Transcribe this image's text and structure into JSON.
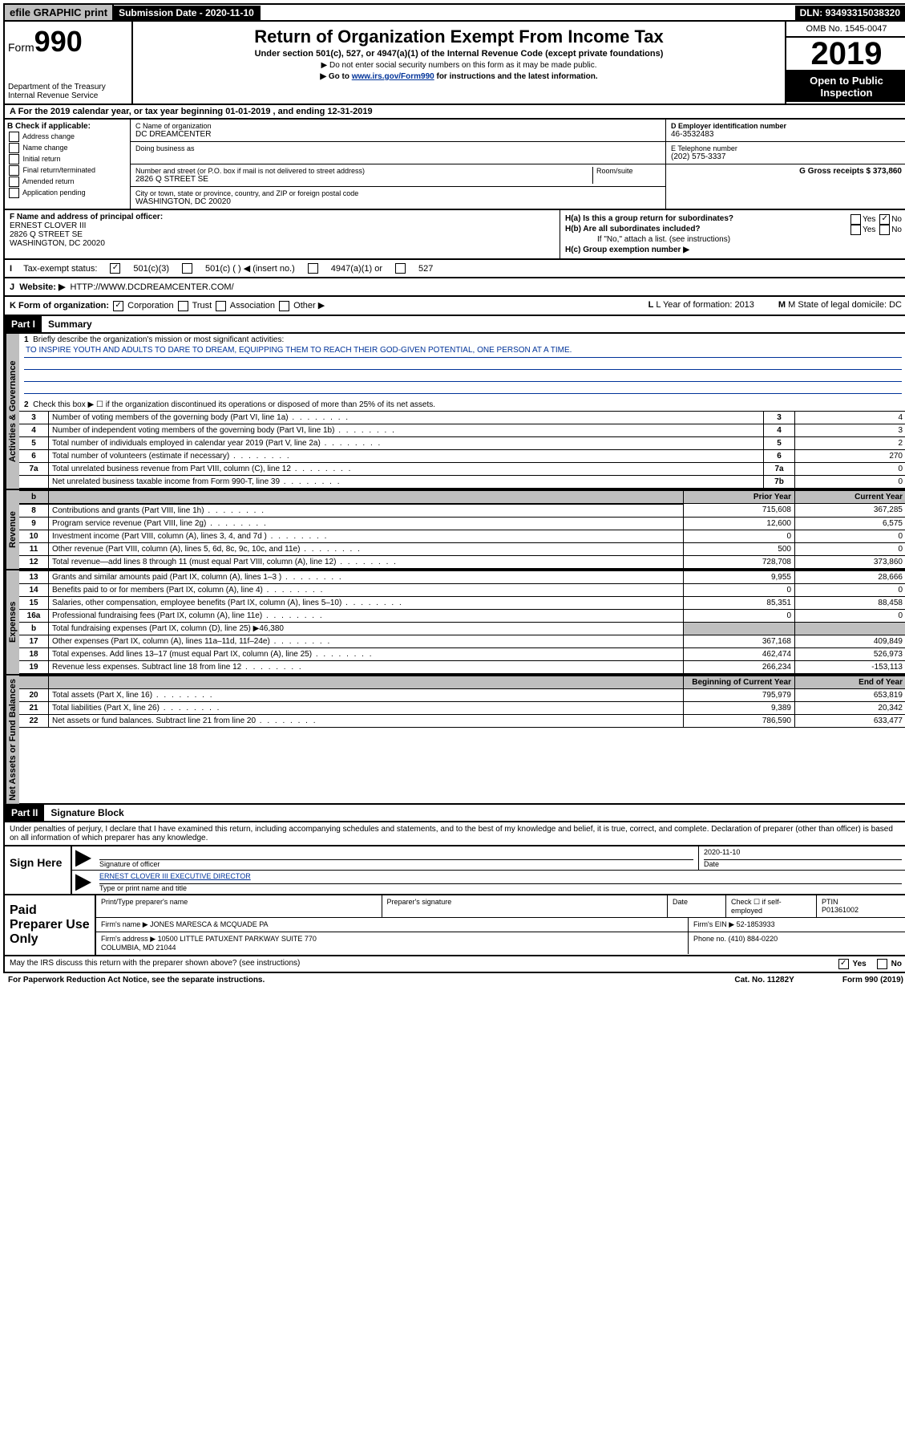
{
  "topbar": {
    "efile": "efile GRAPHIC print",
    "submission": "Submission Date - 2020-11-10",
    "dln": "DLN: 93493315038320"
  },
  "header": {
    "form_prefix": "Form",
    "form_num": "990",
    "dept1": "Department of the Treasury",
    "dept2": "Internal Revenue Service",
    "title": "Return of Organization Exempt From Income Tax",
    "subtitle": "Under section 501(c), 527, or 4947(a)(1) of the Internal Revenue Code (except private foundations)",
    "line1": "▶ Do not enter social security numbers on this form as it may be made public.",
    "line2_pre": "▶ Go to ",
    "line2_link": "www.irs.gov/Form990",
    "line2_post": " for instructions and the latest information.",
    "omb": "OMB No. 1545-0047",
    "year": "2019",
    "open": "Open to Public Inspection"
  },
  "row_a": "A For the 2019 calendar year, or tax year beginning 01-01-2019    , and ending 12-31-2019",
  "section_b": {
    "b_label": "B Check if applicable:",
    "opts": [
      "Address change",
      "Name change",
      "Initial return",
      "Final return/terminated",
      "Amended return",
      "Application pending"
    ]
  },
  "section_c": {
    "name_label": "C Name of organization",
    "name": "DC DREAMCENTER",
    "dba_label": "Doing business as",
    "street_label": "Number and street (or P.O. box if mail is not delivered to street address)",
    "room_label": "Room/suite",
    "street": "2826 Q STREET SE",
    "city_label": "City or town, state or province, country, and ZIP or foreign postal code",
    "city": "WASHINGTON, DC  20020"
  },
  "section_d": {
    "d_label": "D Employer identification number",
    "ein": "46-3532483",
    "e_label": "E Telephone number",
    "phone": "(202) 575-3337",
    "g_label": "G Gross receipts $ 373,860"
  },
  "section_f": {
    "f_label": "F Name and address of principal officer:",
    "name": "ERNEST CLOVER III",
    "street": "2826 Q STREET SE",
    "city": "WASHINGTON, DC  20020"
  },
  "section_h": {
    "ha": "H(a)  Is this a group return for subordinates?",
    "hb": "H(b)  Are all subordinates included?",
    "hb_note": "If \"No,\" attach a list. (see instructions)",
    "hc": "H(c)  Group exemption number ▶"
  },
  "row_i": {
    "label": "Tax-exempt status:",
    "opt1": "501(c)(3)",
    "opt2": "501(c) (   ) ◀ (insert no.)",
    "opt3": "4947(a)(1) or",
    "opt4": "527"
  },
  "row_j": {
    "label": "Website: ▶",
    "url": "HTTP://WWW.DCDREAMCENTER.COM/"
  },
  "row_k": {
    "label": "K Form of organization:",
    "corp": "Corporation",
    "trust": "Trust",
    "assoc": "Association",
    "other": "Other ▶",
    "l": "L Year of formation: 2013",
    "m": "M State of legal domicile: DC"
  },
  "part1": {
    "header": "Part I",
    "title": "Summary",
    "side1": "Activities & Governance",
    "side2": "Revenue",
    "side3": "Expenses",
    "side4": "Net Assets or Fund Balances",
    "q1": "Briefly describe the organization's mission or most significant activities:",
    "mission": "TO INSPIRE YOUTH AND ADULTS TO DARE TO DREAM, EQUIPPING THEM TO REACH THEIR GOD-GIVEN POTENTIAL, ONE PERSON AT A TIME.",
    "q2": "Check this box ▶ ☐  if the organization discontinued its operations or disposed of more than 25% of its net assets.",
    "rows_gov": [
      {
        "n": "3",
        "d": "Number of voting members of the governing body (Part VI, line 1a)",
        "i": "3",
        "v": "4"
      },
      {
        "n": "4",
        "d": "Number of independent voting members of the governing body (Part VI, line 1b)",
        "i": "4",
        "v": "3"
      },
      {
        "n": "5",
        "d": "Total number of individuals employed in calendar year 2019 (Part V, line 2a)",
        "i": "5",
        "v": "2"
      },
      {
        "n": "6",
        "d": "Total number of volunteers (estimate if necessary)",
        "i": "6",
        "v": "270"
      },
      {
        "n": "7a",
        "d": "Total unrelated business revenue from Part VIII, column (C), line 12",
        "i": "7a",
        "v": "0"
      },
      {
        "n": "",
        "d": "Net unrelated business taxable income from Form 990-T, line 39",
        "i": "7b",
        "v": "0"
      }
    ],
    "col_prior": "Prior Year",
    "col_current": "Current Year",
    "rows_rev": [
      {
        "n": "8",
        "d": "Contributions and grants (Part VIII, line 1h)",
        "p": "715,608",
        "c": "367,285"
      },
      {
        "n": "9",
        "d": "Program service revenue (Part VIII, line 2g)",
        "p": "12,600",
        "c": "6,575"
      },
      {
        "n": "10",
        "d": "Investment income (Part VIII, column (A), lines 3, 4, and 7d )",
        "p": "0",
        "c": "0"
      },
      {
        "n": "11",
        "d": "Other revenue (Part VIII, column (A), lines 5, 6d, 8c, 9c, 10c, and 11e)",
        "p": "500",
        "c": "0"
      },
      {
        "n": "12",
        "d": "Total revenue—add lines 8 through 11 (must equal Part VIII, column (A), line 12)",
        "p": "728,708",
        "c": "373,860"
      }
    ],
    "rows_exp": [
      {
        "n": "13",
        "d": "Grants and similar amounts paid (Part IX, column (A), lines 1–3 )",
        "p": "9,955",
        "c": "28,666"
      },
      {
        "n": "14",
        "d": "Benefits paid to or for members (Part IX, column (A), line 4)",
        "p": "0",
        "c": "0"
      },
      {
        "n": "15",
        "d": "Salaries, other compensation, employee benefits (Part IX, column (A), lines 5–10)",
        "p": "85,351",
        "c": "88,458"
      },
      {
        "n": "16a",
        "d": "Professional fundraising fees (Part IX, column (A), line 11e)",
        "p": "0",
        "c": "0"
      },
      {
        "n": "b",
        "d": "Total fundraising expenses (Part IX, column (D), line 25) ▶46,380",
        "p": "",
        "c": ""
      },
      {
        "n": "17",
        "d": "Other expenses (Part IX, column (A), lines 11a–11d, 11f–24e)",
        "p": "367,168",
        "c": "409,849"
      },
      {
        "n": "18",
        "d": "Total expenses. Add lines 13–17 (must equal Part IX, column (A), line 25)",
        "p": "462,474",
        "c": "526,973"
      },
      {
        "n": "19",
        "d": "Revenue less expenses. Subtract line 18 from line 12",
        "p": "266,234",
        "c": "-153,113"
      }
    ],
    "col_begin": "Beginning of Current Year",
    "col_end": "End of Year",
    "rows_net": [
      {
        "n": "20",
        "d": "Total assets (Part X, line 16)",
        "p": "795,979",
        "c": "653,819"
      },
      {
        "n": "21",
        "d": "Total liabilities (Part X, line 26)",
        "p": "9,389",
        "c": "20,342"
      },
      {
        "n": "22",
        "d": "Net assets or fund balances. Subtract line 21 from line 20",
        "p": "786,590",
        "c": "633,477"
      }
    ]
  },
  "part2": {
    "header": "Part II",
    "title": "Signature Block",
    "perjury": "Under penalties of perjury, I declare that I have examined this return, including accompanying schedules and statements, and to the best of my knowledge and belief, it is true, correct, and complete. Declaration of preparer (other than officer) is based on all information of which preparer has any knowledge."
  },
  "sign": {
    "left": "Sign Here",
    "sig_label": "Signature of officer",
    "date": "2020-11-10",
    "date_label": "Date",
    "name": "ERNEST CLOVER III EXECUTIVE DIRECTOR",
    "name_label": "Type or print name and title"
  },
  "paid": {
    "left": "Paid Preparer Use Only",
    "r1c1": "Print/Type preparer's name",
    "r1c2": "Preparer's signature",
    "r1c3": "Date",
    "r1c4a": "Check ☐ if self-employed",
    "r1c5_label": "PTIN",
    "r1c5": "P01361002",
    "r2_label": "Firm's name    ▶",
    "r2_val": "JONES MARESCA & MCQUADE PA",
    "r2_ein": "Firm's EIN ▶ 52-1853933",
    "r3_label": "Firm's address ▶",
    "r3_val": "10500 LITTLE PATUXENT PARKWAY SUITE 770\nCOLUMBIA, MD  21044",
    "r3_phone": "Phone no. (410) 884-0220"
  },
  "footer": {
    "discuss": "May the IRS discuss this return with the preparer shown above? (see instructions)",
    "yes": "Yes",
    "no": "No",
    "paperwork": "For Paperwork Reduction Act Notice, see the separate instructions.",
    "cat": "Cat. No. 11282Y",
    "form": "Form 990 (2019)"
  }
}
